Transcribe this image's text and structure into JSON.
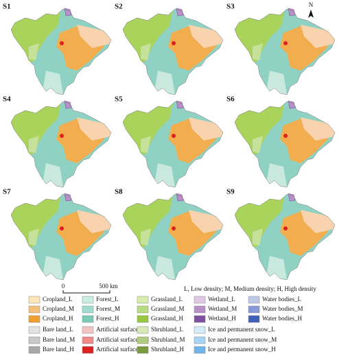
{
  "panels": [
    "S1",
    "S2",
    "S3",
    "S4",
    "S5",
    "S6",
    "S7",
    "S8",
    "S9"
  ],
  "north": "N",
  "scale_bar": {
    "start": "0",
    "end": "500 km"
  },
  "note": "L, Low density; M, Medium density; H, High density",
  "legend": [
    [
      {
        "label": "Cropland_L",
        "color": "#fde6b6"
      },
      {
        "label": "Cropland_M",
        "color": "#f5c07a"
      },
      {
        "label": "Cropland_H",
        "color": "#f0a030"
      },
      {
        "label": "Bare land_L",
        "color": "#e2e2e2"
      },
      {
        "label": "Bare land_M",
        "color": "#c8c8c8"
      },
      {
        "label": "Bare land_H",
        "color": "#a8a8a8"
      }
    ],
    [
      {
        "label": "Forest_L",
        "color": "#c8eee0"
      },
      {
        "label": "Forest_M",
        "color": "#a0dcd0"
      },
      {
        "label": "Forest_H",
        "color": "#7ccab8"
      },
      {
        "label": "Artificial surfaces_L",
        "color": "#f4c4c4"
      },
      {
        "label": "Artificial surfaces_M",
        "color": "#ee8a8a"
      },
      {
        "label": "Artificial surfaces_H",
        "color": "#dd2020"
      }
    ],
    [
      {
        "label": "Grassland_L",
        "color": "#d8ecb0"
      },
      {
        "label": "Grassland_M",
        "color": "#b8dc80"
      },
      {
        "label": "Grassland_H",
        "color": "#98c840"
      },
      {
        "label": "Shrubland_L",
        "color": "#d8e8b8"
      },
      {
        "label": "Shrubland_M",
        "color": "#b0cc80"
      },
      {
        "label": "Shrubland_H",
        "color": "#7a9a40"
      }
    ],
    [
      {
        "label": "Wetland_L",
        "color": "#e0c8e4"
      },
      {
        "label": "Wetland_M",
        "color": "#b890c8"
      },
      {
        "label": "Wetland_H",
        "color": "#8050a0"
      },
      {
        "label": "Ice and permanent snow_L",
        "color": "#d4ecf8"
      },
      {
        "label": "Ice and permanent snow_M",
        "color": "#a8d4f4"
      },
      {
        "label": "Ice and permanent snow_H",
        "color": "#70b4ec"
      }
    ],
    [
      {
        "label": "Water bodies_L",
        "color": "#c0c8e8"
      },
      {
        "label": "Water bodies_M",
        "color": "#8898d8"
      },
      {
        "label": "Water bodies_H",
        "color": "#4060b8"
      }
    ]
  ]
}
